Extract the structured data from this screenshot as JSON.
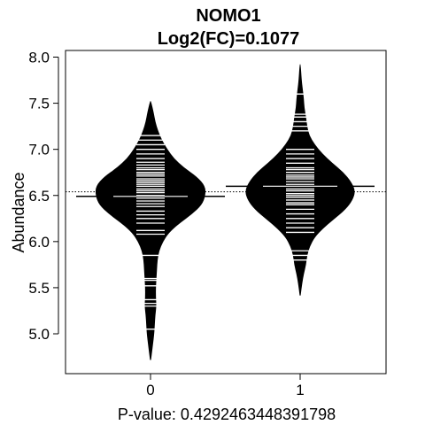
{
  "chart_data": {
    "type": "beanplot",
    "title": "NOMO1",
    "subtitle": "Log2(FC)=0.1077",
    "xlabel": "P-value: 0.4292463448391798",
    "ylabel": "Abundance",
    "categories": [
      "0",
      "1"
    ],
    "ylim": [
      4.62,
      8.05
    ],
    "yticks": [
      5.0,
      5.5,
      6.0,
      6.5,
      7.0,
      7.5,
      8.0
    ],
    "ytick_labels": [
      "5.0",
      "5.5",
      "6.0",
      "6.5",
      "7.0",
      "7.5",
      "8.0"
    ],
    "overall_mean": 6.54,
    "grid": false,
    "legend": "none",
    "colors": {
      "bean": "#000000",
      "lines": "#ffffff",
      "axis": "#000000"
    },
    "groups": [
      {
        "label": "0",
        "mean": 6.49,
        "density": [
          [
            4.72,
            0.002
          ],
          [
            4.85,
            0.03
          ],
          [
            5.0,
            0.06
          ],
          [
            5.1,
            0.07
          ],
          [
            5.2,
            0.08
          ],
          [
            5.3,
            0.1
          ],
          [
            5.4,
            0.09
          ],
          [
            5.5,
            0.09
          ],
          [
            5.6,
            0.1
          ],
          [
            5.7,
            0.11
          ],
          [
            5.8,
            0.12
          ],
          [
            5.9,
            0.15
          ],
          [
            6.0,
            0.22
          ],
          [
            6.1,
            0.33
          ],
          [
            6.2,
            0.52
          ],
          [
            6.3,
            0.75
          ],
          [
            6.4,
            0.93
          ],
          [
            6.5,
            0.995
          ],
          [
            6.6,
            0.99
          ],
          [
            6.7,
            0.84
          ],
          [
            6.8,
            0.6
          ],
          [
            6.9,
            0.42
          ],
          [
            7.0,
            0.3
          ],
          [
            7.1,
            0.2
          ],
          [
            7.2,
            0.13
          ],
          [
            7.3,
            0.08
          ],
          [
            7.4,
            0.05
          ],
          [
            7.52,
            0.002
          ]
        ],
        "observations": [
          5.05,
          5.3,
          5.33,
          5.37,
          5.52,
          5.58,
          5.6,
          5.85,
          6.08,
          6.12,
          6.2,
          6.25,
          6.29,
          6.33,
          6.38,
          6.41,
          6.44,
          6.47,
          6.5,
          6.53,
          6.55,
          6.57,
          6.6,
          6.62,
          6.64,
          6.66,
          6.68,
          6.71,
          6.73,
          6.75,
          6.78,
          6.8,
          6.83,
          6.86,
          6.9,
          6.95,
          7.0,
          7.05,
          7.1,
          7.15
        ]
      },
      {
        "label": "1",
        "mean": 6.6,
        "density": [
          [
            5.42,
            0.002
          ],
          [
            5.55,
            0.03
          ],
          [
            5.65,
            0.06
          ],
          [
            5.75,
            0.1
          ],
          [
            5.85,
            0.12
          ],
          [
            5.95,
            0.17
          ],
          [
            6.05,
            0.26
          ],
          [
            6.15,
            0.42
          ],
          [
            6.25,
            0.62
          ],
          [
            6.35,
            0.82
          ],
          [
            6.45,
            0.95
          ],
          [
            6.55,
            1.0
          ],
          [
            6.65,
            0.92
          ],
          [
            6.75,
            0.78
          ],
          [
            6.85,
            0.58
          ],
          [
            6.95,
            0.4
          ],
          [
            7.05,
            0.26
          ],
          [
            7.15,
            0.16
          ],
          [
            7.25,
            0.12
          ],
          [
            7.35,
            0.1
          ],
          [
            7.45,
            0.07
          ],
          [
            7.55,
            0.06
          ],
          [
            7.65,
            0.04
          ],
          [
            7.75,
            0.02
          ],
          [
            7.92,
            0.002
          ]
        ],
        "observations": [
          5.8,
          5.85,
          5.9,
          6.1,
          6.15,
          6.2,
          6.25,
          6.3,
          6.35,
          6.4,
          6.42,
          6.45,
          6.48,
          6.5,
          6.52,
          6.55,
          6.57,
          6.6,
          6.62,
          6.65,
          6.68,
          6.7,
          6.72,
          6.75,
          6.78,
          6.8,
          6.85,
          6.9,
          6.95,
          7.0,
          7.2,
          7.25,
          7.3,
          7.35,
          7.38,
          7.6
        ]
      }
    ]
  }
}
